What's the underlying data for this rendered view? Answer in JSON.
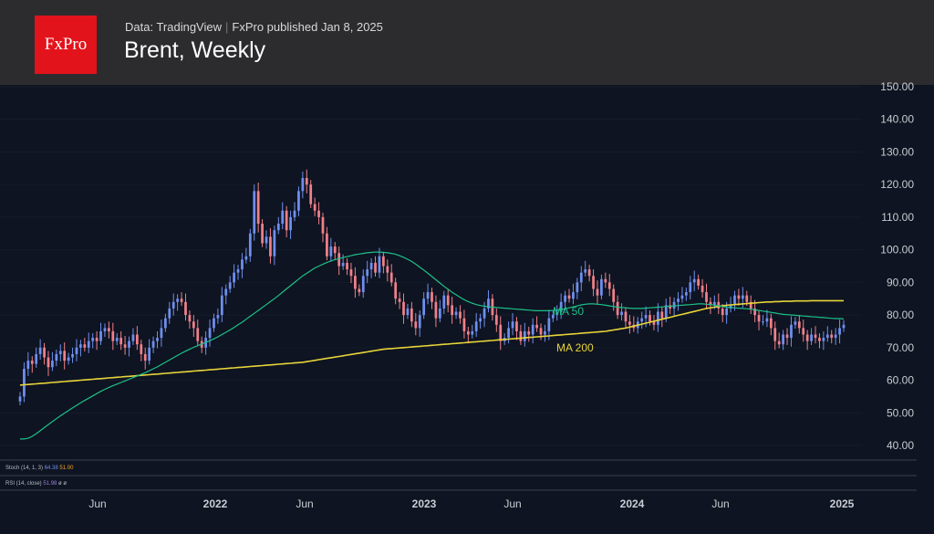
{
  "header": {
    "logo_text": "FxPro",
    "source": "Data: TradingView",
    "published": "FxPro published Jan 8, 2025",
    "title": "Brent, Weekly"
  },
  "colors": {
    "background": "#0e1421",
    "header_bg": "#2c2c2f",
    "logo_red": "#e3131b",
    "candle_up": "#6f8ff0",
    "candle_down": "#f0808a",
    "ma50": "#1ec08a",
    "ma200": "#e8d43a"
  },
  "indicators": {
    "stoch_label": "Stoch (14, 1, 3)",
    "stoch_v1": "64.38",
    "stoch_v2": "51.00",
    "rsi_label": "RSI (14, close)",
    "rsi_v1": "51.98",
    "rsi_v2": "ø",
    "rsi_v3": "ø"
  },
  "chart_data": {
    "type": "candlestick",
    "title": "Brent, Weekly",
    "x_labels": [
      "Jun",
      "2022",
      "Jun",
      "2023",
      "Jun",
      "2024",
      "Jun",
      "2025"
    ],
    "y_ticks": [
      "40.00",
      "50.00",
      "60.00",
      "70.00",
      "80.00",
      "90.00",
      "100.00",
      "110.00",
      "120.00",
      "130.00",
      "140.00",
      "150.00"
    ],
    "ylim": [
      40,
      150
    ],
    "annotations": [
      {
        "text": "MA 50"
      },
      {
        "text": "MA 200"
      }
    ],
    "closes": [
      55,
      63.5,
      66,
      65,
      68,
      70,
      67,
      64,
      66,
      68,
      69,
      66,
      67,
      68,
      70,
      71,
      70,
      72,
      73,
      72,
      75,
      76,
      75,
      72,
      73,
      71,
      70,
      72,
      74,
      71,
      68,
      66,
      70,
      72,
      73,
      76,
      79,
      82,
      84,
      85,
      84,
      80,
      78,
      76,
      72,
      70,
      73,
      76,
      79,
      80,
      86,
      88,
      90,
      93,
      94,
      97,
      98,
      105,
      118,
      108,
      102,
      104,
      98,
      106,
      108,
      112,
      106,
      110,
      112,
      118,
      122,
      120,
      114,
      112,
      110,
      105,
      98,
      101,
      99,
      95,
      96,
      94,
      92,
      88,
      87,
      92,
      94,
      96,
      93,
      98,
      95,
      93,
      90,
      85,
      84,
      80,
      82,
      78,
      76,
      80,
      85,
      87,
      84,
      79,
      82,
      86,
      83,
      80,
      81,
      79,
      75,
      74,
      75,
      78,
      79,
      82,
      85,
      80,
      77,
      72,
      73,
      76,
      78,
      75,
      72,
      75,
      74,
      77,
      76,
      74,
      75,
      79,
      80,
      81,
      84,
      86,
      85,
      87,
      90,
      93,
      94,
      92,
      88,
      86,
      91,
      90,
      88,
      84,
      80,
      81,
      78,
      77,
      76,
      78,
      79,
      80,
      78,
      77,
      81,
      79,
      83,
      82,
      84,
      85,
      86,
      87,
      90,
      91,
      89,
      87,
      84,
      83,
      84,
      82,
      80,
      82,
      83,
      86,
      85,
      86,
      84,
      82,
      80,
      78,
      78,
      79,
      76,
      72,
      71,
      74,
      73,
      77,
      78,
      76,
      74,
      72,
      74,
      73,
      72,
      73,
      74,
      73,
      74,
      76,
      77
    ],
    "ma50": [
      42,
      42,
      42.2,
      42.8,
      43.6,
      44.5,
      45.5,
      46.4,
      47.3,
      48.2,
      49.1,
      49.9,
      50.7,
      51.5,
      52.3,
      53.1,
      53.8,
      54.5,
      55.2,
      55.9,
      56.6,
      57.2,
      57.8,
      58.3,
      58.8,
      59.3,
      59.8,
      60.3,
      60.8,
      61.3,
      61.8,
      62.3,
      62.9,
      63.5,
      64.1,
      64.8,
      65.5,
      66.2,
      66.9,
      67.6,
      68.3,
      68.9,
      69.5,
      70.1,
      70.6,
      71.1,
      71.6,
      72.1,
      72.7,
      73.3,
      74,
      74.7,
      75.4,
      76.2,
      77,
      77.8,
      78.7,
      79.6,
      80.5,
      81.4,
      82.3,
      83.2,
      84.1,
      85,
      86,
      87,
      88,
      89,
      90,
      91,
      92,
      92.8,
      93.6,
      94.4,
      95,
      95.6,
      96.1,
      96.6,
      97,
      97.3,
      97.6,
      97.9,
      98.2,
      98.5,
      98.7,
      98.9,
      99.1,
      99.2,
      99.3,
      99.3,
      99.2,
      99.1,
      98.9,
      98.6,
      98.2,
      97.7,
      97.1,
      96.4,
      95.6,
      94.7,
      93.8,
      92.8,
      91.8,
      90.8,
      89.8,
      88.8,
      87.9,
      87,
      86.2,
      85.4,
      84.7,
      84.1,
      83.6,
      83.2,
      82.9,
      82.7,
      82.5,
      82.4,
      82.3,
      82.2,
      82.1,
      82,
      81.9,
      81.8,
      81.7,
      81.6,
      81.5,
      81.4,
      81.3,
      81.3,
      81.3,
      81.3,
      81.4,
      81.5,
      81.7,
      81.9,
      82.2,
      82.5,
      82.8,
      83.1,
      83.3,
      83.4,
      83.4,
      83.3,
      83.2,
      83,
      82.8,
      82.6,
      82.4,
      82.3,
      82.2,
      82.1,
      82,
      82,
      82,
      82.1,
      82.2,
      82.3,
      82.4,
      82.5,
      82.6,
      82.7,
      82.8,
      82.9,
      83,
      83.1,
      83.2,
      83.3,
      83.4,
      83.4,
      83.3,
      83.2,
      83,
      82.8,
      82.6,
      82.4,
      82.3,
      82.2,
      82.1,
      82,
      81.9,
      81.8,
      81.6,
      81.4,
      81.2,
      81,
      80.8,
      80.6,
      80.4,
      80.2,
      80.1,
      80,
      79.9,
      79.8,
      79.7,
      79.6,
      79.5,
      79.4,
      79.3,
      79.2,
      79.1,
      79,
      78.9,
      78.9,
      78.8
    ],
    "ma200": [
      58.5,
      58.6,
      58.7,
      58.8,
      58.9,
      59,
      59.1,
      59.2,
      59.3,
      59.4,
      59.5,
      59.6,
      59.7,
      59.8,
      59.9,
      60,
      60.1,
      60.2,
      60.3,
      60.4,
      60.5,
      60.6,
      60.7,
      60.8,
      60.9,
      61,
      61.1,
      61.2,
      61.3,
      61.4,
      61.5,
      61.6,
      61.7,
      61.8,
      61.9,
      62,
      62.1,
      62.2,
      62.3,
      62.4,
      62.5,
      62.6,
      62.7,
      62.8,
      62.9,
      63,
      63.1,
      63.2,
      63.3,
      63.4,
      63.5,
      63.6,
      63.7,
      63.8,
      63.9,
      64,
      64.1,
      64.2,
      64.3,
      64.4,
      64.5,
      64.6,
      64.7,
      64.8,
      64.9,
      65,
      65.1,
      65.2,
      65.3,
      65.4,
      65.5,
      65.7,
      65.9,
      66.1,
      66.3,
      66.5,
      66.7,
      66.9,
      67.1,
      67.3,
      67.5,
      67.7,
      67.9,
      68.1,
      68.3,
      68.5,
      68.7,
      68.9,
      69.1,
      69.3,
      69.5,
      69.6,
      69.7,
      69.8,
      69.9,
      70,
      70.1,
      70.2,
      70.3,
      70.4,
      70.5,
      70.6,
      70.7,
      70.8,
      70.9,
      71,
      71.1,
      71.2,
      71.3,
      71.4,
      71.5,
      71.6,
      71.7,
      71.8,
      71.9,
      72,
      72.1,
      72.2,
      72.3,
      72.4,
      72.5,
      72.6,
      72.7,
      72.8,
      72.9,
      73,
      73.1,
      73.2,
      73.3,
      73.4,
      73.5,
      73.6,
      73.7,
      73.8,
      73.9,
      74,
      74.1,
      74.2,
      74.3,
      74.4,
      74.5,
      74.6,
      74.7,
      74.8,
      74.9,
      75,
      75.2,
      75.4,
      75.6,
      75.8,
      76,
      76.3,
      76.6,
      76.9,
      77.2,
      77.5,
      77.8,
      78.1,
      78.4,
      78.7,
      79,
      79.3,
      79.6,
      79.9,
      80.2,
      80.5,
      80.8,
      81.1,
      81.4,
      81.7,
      82,
      82.2,
      82.4,
      82.6,
      82.8,
      83,
      83.1,
      83.2,
      83.3,
      83.4,
      83.5,
      83.6,
      83.7,
      83.8,
      83.9,
      84,
      84,
      84.1,
      84.1,
      84.2,
      84.2,
      84.2,
      84.3,
      84.3,
      84.3,
      84.3,
      84.4,
      84.4,
      84.4,
      84.4,
      84.4,
      84.4,
      84.4,
      84.4,
      84.4
    ]
  }
}
